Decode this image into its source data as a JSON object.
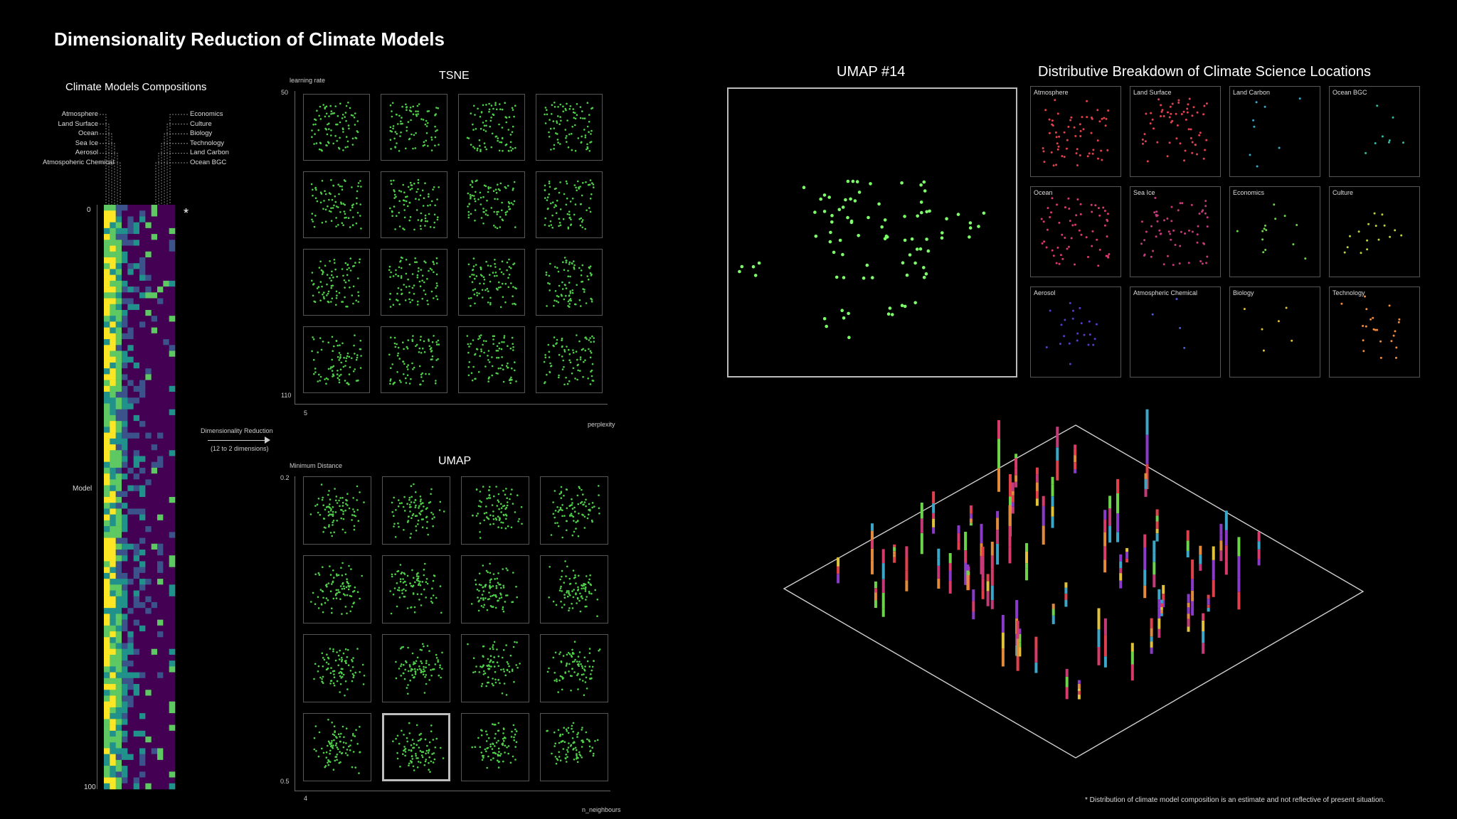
{
  "title": "Dimensionality Reduction of Climate Models",
  "compositions": {
    "heading": "Climate Models Compositions",
    "left_labels": [
      "Atmosphere",
      "Land Surface",
      "Ocean",
      "Sea Ice",
      "Aerosol",
      "Atmospoheric Chemical"
    ],
    "right_labels": [
      "Economics",
      "Culture",
      "Biology",
      "Technology",
      "Land Carbon",
      "Ocean BGC"
    ],
    "asterisk": "*",
    "y_top": "0",
    "y_bottom": "100",
    "y_label": "Model",
    "columns": 12,
    "rows": 100
  },
  "arrow": {
    "line1": "Dimensionality Reduction",
    "line2": "(12 to 2 dimensions)"
  },
  "tsne": {
    "heading": "TSNE",
    "y_axis_label": "learning rate",
    "y_top": "50",
    "y_bottom": "110",
    "x_left": "5",
    "x_axis_label": "perplexity"
  },
  "umap_grid": {
    "heading": "UMAP",
    "y_axis_label": "Minimum Distance",
    "y_top": "0.2",
    "y_bottom": "0.5",
    "x_left": "4",
    "x_axis_label": "n_neighbours",
    "highlighted_index": 13
  },
  "umap14": {
    "heading": "UMAP #14",
    "point_color": "#7dff6a"
  },
  "breakdown": {
    "heading": "Distributive Breakdown of Climate Science Locations",
    "panels": [
      {
        "label": "Atmosphere",
        "color": "#e0404a"
      },
      {
        "label": "Land Surface",
        "color": "#e04050"
      },
      {
        "label": "Land Carbon",
        "color": "#3aa6c8"
      },
      {
        "label": "Ocean BGC",
        "color": "#32b9a0"
      },
      {
        "label": "Ocean",
        "color": "#d83a6a"
      },
      {
        "label": "Sea Ice",
        "color": "#c43a78"
      },
      {
        "label": "Economics",
        "color": "#6cd44a"
      },
      {
        "label": "Culture",
        "color": "#b8d23a"
      },
      {
        "label": "Aerosol",
        "color": "#5a3acc"
      },
      {
        "label": "Atmospheric Chemical",
        "color": "#4a5ad0"
      },
      {
        "label": "Biology",
        "color": "#e0c23a"
      },
      {
        "label": "Technology",
        "color": "#f08a3a"
      }
    ]
  },
  "footnote": "* Distribution of climate model composition is an estimate and not reflective of present situation.",
  "colors": {
    "viridis": [
      "#440154",
      "#3b528b",
      "#21918c",
      "#5ec962",
      "#fde725"
    ],
    "bar_palette": [
      "#e0404a",
      "#d83a6a",
      "#c43a78",
      "#8a3ac8",
      "#3aa6c8",
      "#6cd44a",
      "#e08a3a",
      "#e0c23a"
    ]
  }
}
